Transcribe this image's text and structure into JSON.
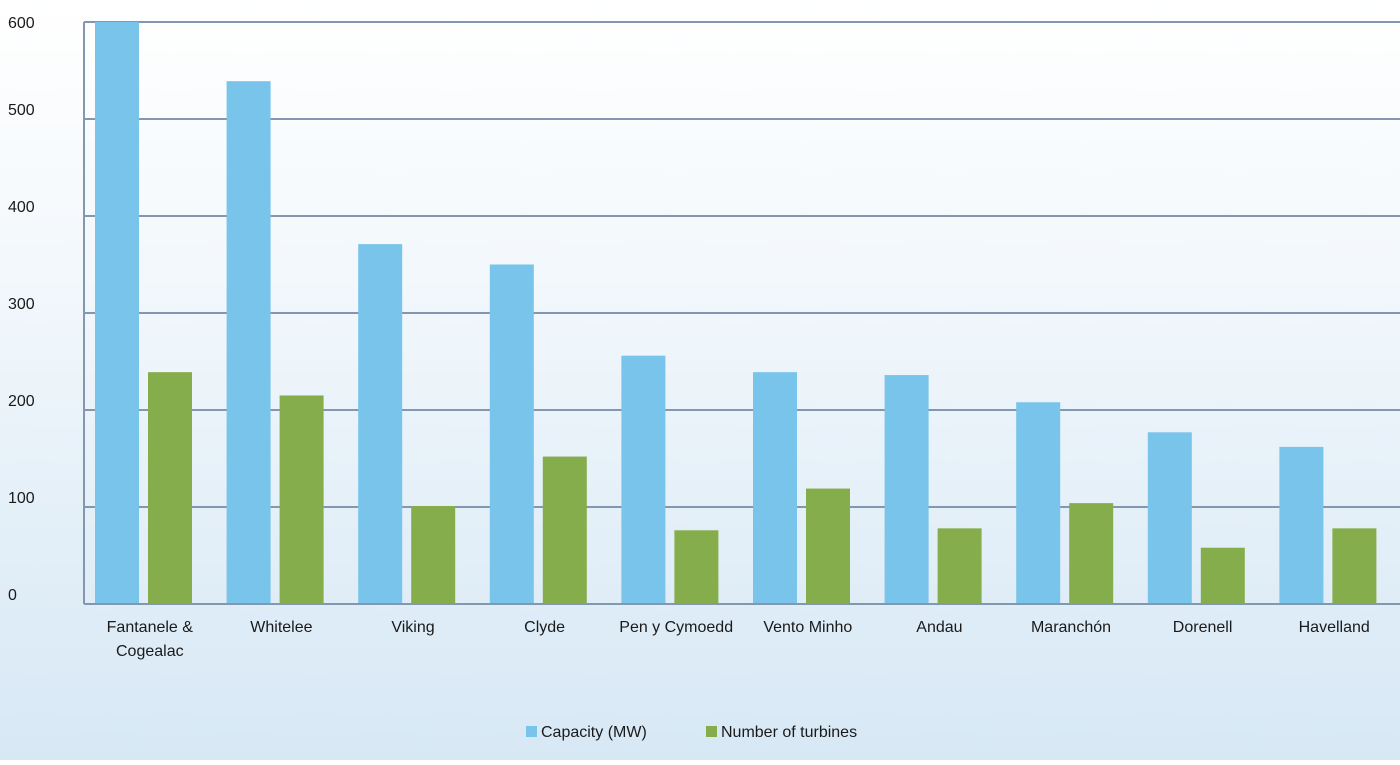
{
  "chart_data": {
    "type": "bar",
    "title": "",
    "xlabel": "",
    "ylabel": "",
    "ylim": [
      0,
      600
    ],
    "yticks": [
      0,
      100,
      200,
      300,
      400,
      500,
      600
    ],
    "grid": true,
    "legend_position": "bottom-center",
    "categories": [
      [
        "Fantanele &",
        "Cogealac"
      ],
      [
        "Whitelee"
      ],
      [
        "Viking"
      ],
      [
        "Clyde"
      ],
      [
        "Pen y Cymoedd"
      ],
      [
        "Vento Minho"
      ],
      [
        "Andau"
      ],
      [
        "Maranchón"
      ],
      [
        "Dorenell"
      ],
      [
        "Havelland"
      ]
    ],
    "series": [
      {
        "name": "Capacity (MW)",
        "color": "#79c4ea",
        "values": [
          600,
          539,
          371,
          350,
          256,
          239,
          236,
          208,
          177,
          162
        ]
      },
      {
        "name": "Number of turbines",
        "color": "#86ad4c",
        "values": [
          239,
          215,
          101,
          152,
          76,
          119,
          78,
          104,
          58,
          78
        ]
      }
    ]
  }
}
